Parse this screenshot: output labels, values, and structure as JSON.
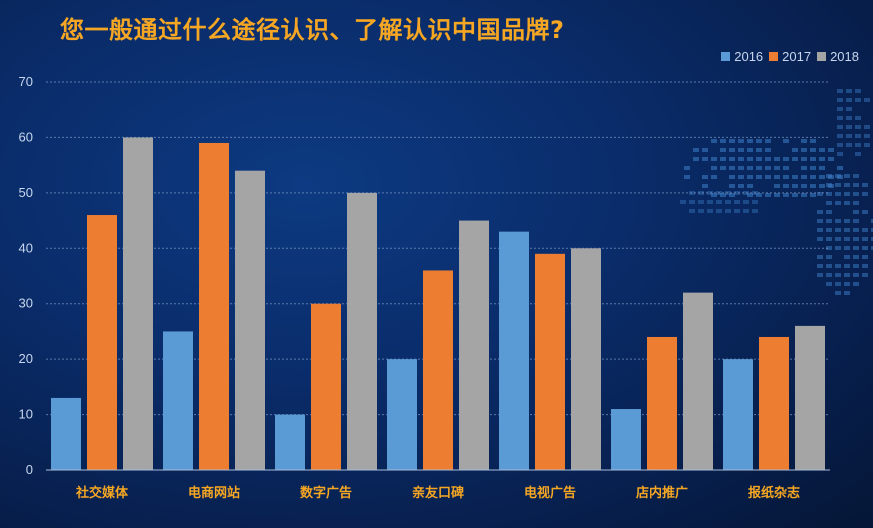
{
  "page": {
    "title": "您一般通过什么途径认识、了解认识中国品牌?"
  },
  "colors": {
    "series": [
      "#5b9bd5",
      "#ed7d31",
      "#a5a5a5"
    ],
    "title": "#f5a623",
    "tick_text": "#c8d6ee",
    "category_text": "#f5a623",
    "grid": "#7f9cc8"
  },
  "chart_data": {
    "type": "bar",
    "categories": [
      "社交媒体",
      "电商网站",
      "数字广告",
      "亲友口碑",
      "电视广告",
      "店内推广",
      "报纸杂志"
    ],
    "series": [
      {
        "name": "2016",
        "values": [
          13,
          25,
          10,
          20,
          43,
          11,
          20
        ]
      },
      {
        "name": "2017",
        "values": [
          46,
          59,
          30,
          36,
          39,
          24,
          24
        ]
      },
      {
        "name": "2018",
        "values": [
          60,
          54,
          50,
          45,
          40,
          32,
          26
        ]
      }
    ],
    "ylim": [
      0,
      70
    ],
    "yticks": [
      0,
      10,
      20,
      30,
      40,
      50,
      60,
      70
    ],
    "grid": true,
    "legend_position": "top-right"
  }
}
